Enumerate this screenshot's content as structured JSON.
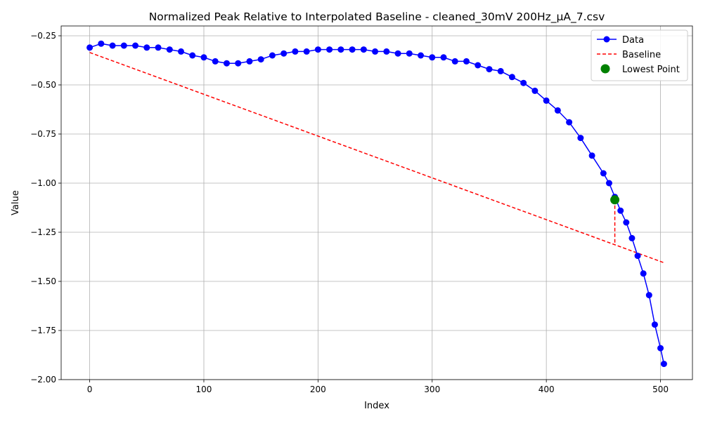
{
  "chart_data": {
    "type": "line",
    "title": "Normalized Peak Relative to Interpolated Baseline - cleaned_30mV 200Hz_µA_7.csv",
    "xlabel": "Index",
    "ylabel": "Value",
    "xlim": [
      -25,
      528
    ],
    "ylim": [
      -2.0,
      -0.2
    ],
    "xticks": [
      0,
      100,
      200,
      300,
      400,
      500
    ],
    "yticks": [
      -2.0,
      -1.75,
      -1.5,
      -1.25,
      -1.0,
      -0.75,
      -0.5,
      -0.25
    ],
    "ytick_labels": [
      "−2.00",
      "−1.75",
      "−1.50",
      "−1.25",
      "−1.00",
      "−0.75",
      "−0.50",
      "−0.25"
    ],
    "grid": true,
    "legend_position": "top-right",
    "series": [
      {
        "name": "Data",
        "style": "line-with-circle-markers",
        "color": "#0000ff",
        "points": [
          [
            0,
            -0.31
          ],
          [
            10,
            -0.29
          ],
          [
            20,
            -0.3
          ],
          [
            30,
            -0.3
          ],
          [
            40,
            -0.3
          ],
          [
            50,
            -0.31
          ],
          [
            60,
            -0.31
          ],
          [
            70,
            -0.32
          ],
          [
            80,
            -0.33
          ],
          [
            90,
            -0.35
          ],
          [
            100,
            -0.36
          ],
          [
            110,
            -0.38
          ],
          [
            120,
            -0.39
          ],
          [
            130,
            -0.39
          ],
          [
            140,
            -0.38
          ],
          [
            150,
            -0.37
          ],
          [
            160,
            -0.35
          ],
          [
            170,
            -0.34
          ],
          [
            180,
            -0.33
          ],
          [
            190,
            -0.33
          ],
          [
            200,
            -0.32
          ],
          [
            210,
            -0.32
          ],
          [
            220,
            -0.32
          ],
          [
            230,
            -0.32
          ],
          [
            240,
            -0.32
          ],
          [
            250,
            -0.33
          ],
          [
            260,
            -0.33
          ],
          [
            270,
            -0.34
          ],
          [
            280,
            -0.34
          ],
          [
            290,
            -0.35
          ],
          [
            300,
            -0.36
          ],
          [
            310,
            -0.36
          ],
          [
            320,
            -0.38
          ],
          [
            330,
            -0.38
          ],
          [
            340,
            -0.4
          ],
          [
            350,
            -0.42
          ],
          [
            360,
            -0.43
          ],
          [
            370,
            -0.46
          ],
          [
            380,
            -0.49
          ],
          [
            390,
            -0.53
          ],
          [
            400,
            -0.58
          ],
          [
            410,
            -0.63
          ],
          [
            420,
            -0.69
          ],
          [
            430,
            -0.77
          ],
          [
            440,
            -0.86
          ],
          [
            450,
            -0.95
          ],
          [
            455,
            -1.0
          ],
          [
            460,
            -1.07
          ],
          [
            465,
            -1.14
          ],
          [
            470,
            -1.2
          ],
          [
            475,
            -1.28
          ],
          [
            480,
            -1.37
          ],
          [
            485,
            -1.46
          ],
          [
            490,
            -1.57
          ],
          [
            495,
            -1.72
          ],
          [
            500,
            -1.84
          ],
          [
            503,
            -1.92
          ]
        ]
      },
      {
        "name": "Baseline",
        "style": "dashed",
        "color": "#ff0000",
        "points": [
          [
            0,
            -0.335
          ],
          [
            503,
            -1.405
          ]
        ]
      },
      {
        "name": "Lowest Point",
        "style": "marker",
        "color": "#008000",
        "points": [
          [
            460,
            -1.085
          ]
        ]
      }
    ],
    "annotations": [
      {
        "type": "dashed-vertical",
        "color": "#ff0000",
        "x": 460,
        "y_from": -1.085,
        "y_to": -1.314
      }
    ]
  }
}
